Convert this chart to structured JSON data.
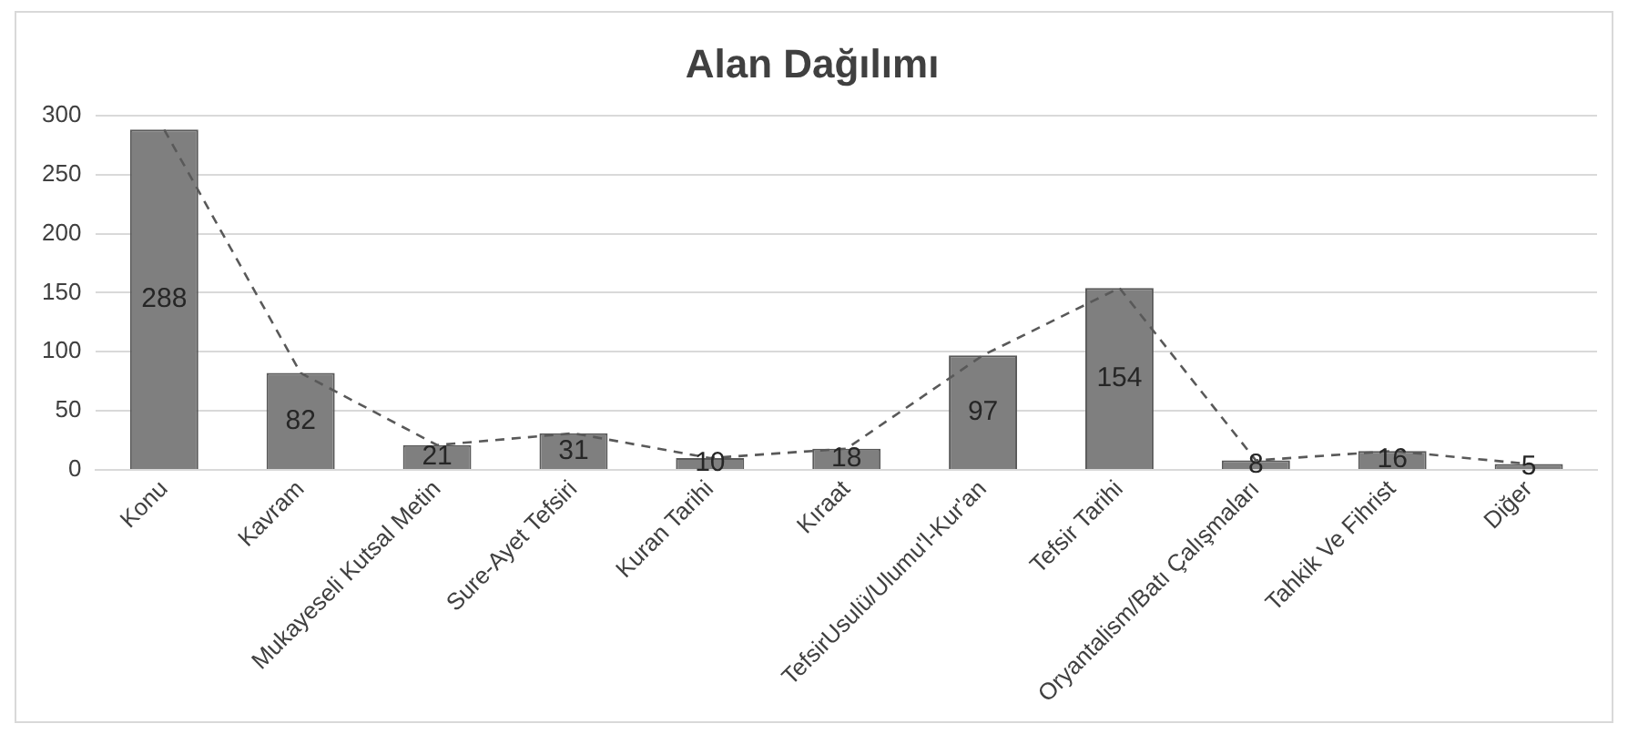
{
  "chart_data": {
    "type": "bar",
    "title": "Alan Dağılımı",
    "categories": [
      "Konu",
      "Kavram",
      "Mukayeseli Kutsal Metin",
      "Sure-Ayet Tefsiri",
      "Kuran Tarihi",
      "Kıraat",
      "TefsirUsulü/Ulumu'l-Kur'an",
      "Tefsir Tarihi",
      "Oryantalism/Batı Çalışmaları",
      "Tahkik Ve Fihrist",
      "Diğer"
    ],
    "series": [
      {
        "color": "#7f7f7f",
        "values": [
          288,
          82,
          21,
          31,
          10,
          18,
          97,
          154,
          8,
          16,
          5
        ],
        "value_labels": [
          "288",
          "82",
          "21",
          "31",
          "10",
          "18",
          "97",
          "154",
          "8",
          "16",
          "5"
        ]
      },
      {
        "type": "line",
        "color": "#595959",
        "line_style": "dashed",
        "marker": "none",
        "values": [
          288,
          82,
          21,
          31,
          10,
          18,
          97,
          154,
          8,
          16,
          5
        ]
      }
    ],
    "ylim": [
      0,
      300
    ],
    "yticks": [
      0,
      50,
      100,
      150,
      200,
      250,
      300
    ],
    "grid": "y",
    "legend": false
  }
}
